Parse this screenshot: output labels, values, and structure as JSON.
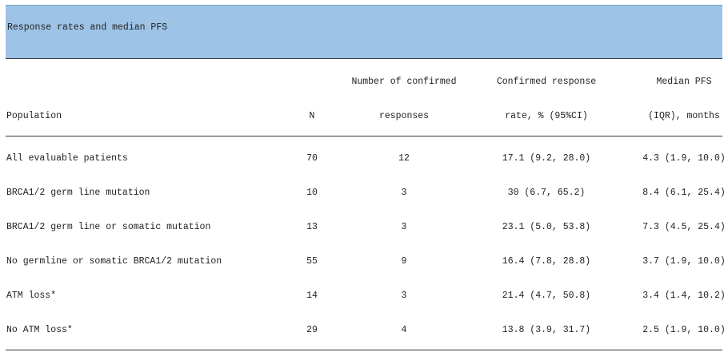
{
  "table": {
    "title": "Response rates and median PFS",
    "columns": [
      [
        "Population"
      ],
      [
        "N"
      ],
      [
        "Number of confirmed",
        "responses"
      ],
      [
        "Confirmed response",
        "rate, % (95%CI)"
      ],
      [
        "Median PFS",
        "(IQR), months"
      ]
    ],
    "rows": [
      [
        "All evaluable patients",
        "70",
        "12",
        "17.1 (9.2, 28.0)",
        "4.3 (1.9, 10.0)"
      ],
      [
        "BRCA1/2 germ line mutation",
        "10",
        "3",
        "30 (6.7, 65.2)",
        "8.4 (6.1, 25.4)"
      ],
      [
        "BRCA1/2 germ line or somatic mutation",
        "13",
        "3",
        "23.1 (5.0, 53.8)",
        "7.3 (4.5, 25.4)"
      ],
      [
        "No germline or somatic BRCA1/2 mutation",
        "55",
        "9",
        "16.4 (7.8, 28.8)",
        "3.7 (1.9, 10.0)"
      ],
      [
        "ATM loss*",
        "14",
        "3",
        "21.4 (4.7, 50.8)",
        "3.4 (1.4, 10.2)"
      ],
      [
        "No ATM loss*",
        "29",
        "4",
        "13.8 (3.9, 31.7)",
        "2.5 (1.9, 10.0)"
      ]
    ]
  }
}
